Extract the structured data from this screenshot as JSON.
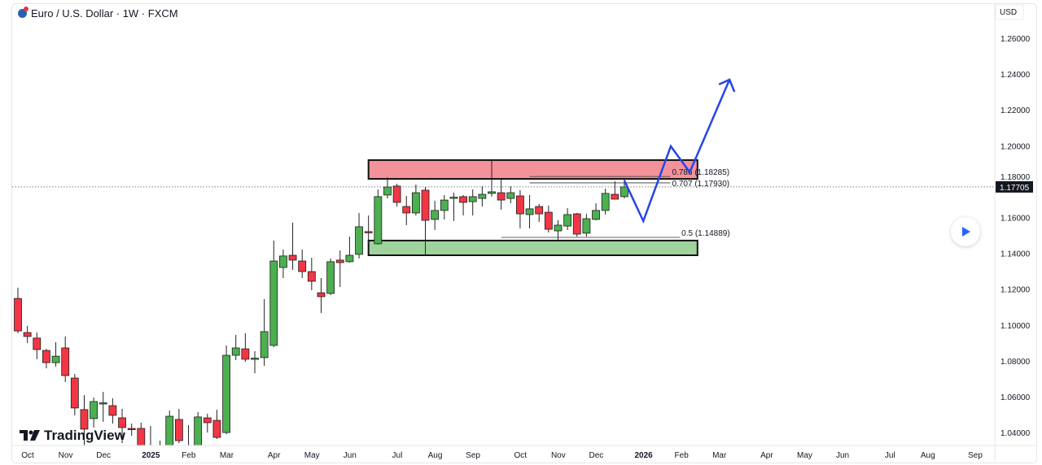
{
  "header": {
    "title": "Euro / U.S. Dollar · 1W · FXCM",
    "currency": "USD",
    "logo_text": "TradingView"
  },
  "colors": {
    "up": "#4caf50",
    "down": "#f23645",
    "outline": "#1e1e1e",
    "projection": "#2546e8",
    "supply_zone": "#f4929c",
    "demand_zone": "#9ed49c",
    "last_price_bg": "#131722"
  },
  "chart_data": {
    "type": "candlestick",
    "title": "Euro / U.S. Dollar · 1W · FXCM",
    "ylabel": "USD",
    "ylim": [
      1.03,
      1.28
    ],
    "y_ticks": [
      "1.26000",
      "1.24000",
      "1.22000",
      "1.20000",
      "1.18000",
      "1.16000",
      "1.14000",
      "1.12000",
      "1.10000",
      "1.08000",
      "1.06000",
      "1.04000"
    ],
    "x_ticks": [
      {
        "label": "Oct",
        "week": 1
      },
      {
        "label": "Nov",
        "week": 5
      },
      {
        "label": "Dec",
        "week": 9
      },
      {
        "label": "2025",
        "week": 14,
        "bold": true
      },
      {
        "label": "Feb",
        "week": 18
      },
      {
        "label": "Mar",
        "week": 22
      },
      {
        "label": "Apr",
        "week": 27
      },
      {
        "label": "May",
        "week": 31
      },
      {
        "label": "Jun",
        "week": 35
      },
      {
        "label": "Jul",
        "week": 40
      },
      {
        "label": "Aug",
        "week": 44
      },
      {
        "label": "Sep",
        "week": 48
      },
      {
        "label": "Oct",
        "week": 53
      },
      {
        "label": "Nov",
        "week": 57
      },
      {
        "label": "Dec",
        "week": 61
      },
      {
        "label": "2026",
        "week": 66,
        "bold": true
      },
      {
        "label": "Feb",
        "week": 70
      },
      {
        "label": "Mar",
        "week": 74
      },
      {
        "label": "Apr",
        "week": 79
      },
      {
        "label": "May",
        "week": 83
      },
      {
        "label": "Jun",
        "week": 87
      },
      {
        "label": "Jul",
        "week": 92
      },
      {
        "label": "Aug",
        "week": 96
      },
      {
        "label": "Sep",
        "week": 101
      }
    ],
    "ohlc": [
      [
        1.1148,
        1.1208,
        1.0954,
        1.0967
      ],
      [
        1.0958,
        1.0995,
        1.0899,
        1.0936
      ],
      [
        1.0927,
        1.0958,
        1.0809,
        1.0863
      ],
      [
        1.0858,
        1.0867,
        1.0758,
        1.079
      ],
      [
        1.079,
        1.0904,
        1.0768,
        1.0826
      ],
      [
        1.0872,
        1.0936,
        1.0682,
        1.0718
      ],
      [
        1.0704,
        1.0727,
        1.0496,
        1.0537
      ],
      [
        1.0528,
        1.0609,
        1.0328,
        1.0419
      ],
      [
        1.0478,
        1.0595,
        1.0428,
        1.0573
      ],
      [
        1.0564,
        1.0627,
        1.046,
        1.0566
      ],
      [
        1.055,
        1.0591,
        1.045,
        1.0496
      ],
      [
        1.0482,
        1.0532,
        1.0341,
        1.0428
      ],
      [
        1.0423,
        1.045,
        1.0382,
        1.042
      ],
      [
        1.0423,
        1.0455,
        1.025,
        1.0273
      ],
      [
        1.0273,
        1.0437,
        1.0205,
        1.0228
      ],
      [
        1.023,
        1.0355,
        1.018,
        1.03
      ],
      [
        1.0273,
        1.0523,
        1.025,
        1.0491
      ],
      [
        1.0473,
        1.0532,
        1.0341,
        1.0355
      ],
      [
        1.024,
        1.0441,
        1.021,
        1.031
      ],
      [
        1.0273,
        1.0514,
        1.025,
        1.0487
      ],
      [
        1.0482,
        1.0505,
        1.04,
        1.0455
      ],
      [
        1.0468,
        1.0527,
        1.0364,
        1.0373
      ],
      [
        1.04,
        1.0886,
        1.0391,
        1.0831
      ],
      [
        1.0831,
        1.0945,
        1.0804,
        1.0872
      ],
      [
        1.0867,
        1.0954,
        1.0795,
        1.0809
      ],
      [
        1.0813,
        1.0854,
        1.0731,
        1.0815
      ],
      [
        1.0818,
        1.1144,
        1.0772,
        1.0963
      ],
      [
        1.0886,
        1.1471,
        1.0877,
        1.1357
      ],
      [
        1.1321,
        1.1421,
        1.1262,
        1.1385
      ],
      [
        1.1389,
        1.1571,
        1.1307,
        1.1362
      ],
      [
        1.1357,
        1.1421,
        1.1262,
        1.1298
      ],
      [
        1.1298,
        1.1375,
        1.1194,
        1.1244
      ],
      [
        1.118,
        1.1262,
        1.1067,
        1.1158
      ],
      [
        1.1176,
        1.1371,
        1.1167,
        1.1353
      ],
      [
        1.1362,
        1.1416,
        1.1212,
        1.1348
      ],
      [
        1.1353,
        1.1493,
        1.1348,
        1.1389
      ],
      [
        1.1394,
        1.1625,
        1.1371,
        1.1548
      ],
      [
        1.1521,
        1.1611,
        1.1453,
        1.1519
      ],
      [
        1.1453,
        1.1756,
        1.1448,
        1.1716
      ],
      [
        1.1725,
        1.1824,
        1.1706,
        1.177
      ],
      [
        1.1775,
        1.1788,
        1.1661,
        1.1684
      ],
      [
        1.1661,
        1.172,
        1.1557,
        1.1625
      ],
      [
        1.1625,
        1.1784,
        1.1611,
        1.1738
      ],
      [
        1.1752,
        1.177,
        1.1394,
        1.1584
      ],
      [
        1.1589,
        1.1693,
        1.153,
        1.1639
      ],
      [
        1.1639,
        1.1725,
        1.1589,
        1.1697
      ],
      [
        1.1711,
        1.1738,
        1.158,
        1.1713
      ],
      [
        1.1716,
        1.1725,
        1.1611,
        1.1684
      ],
      [
        1.1688,
        1.1756,
        1.1611,
        1.1716
      ],
      [
        1.1706,
        1.1774,
        1.1661,
        1.1729
      ],
      [
        1.1734,
        1.192,
        1.1716,
        1.1743
      ],
      [
        1.1738,
        1.1811,
        1.1643,
        1.1697
      ],
      [
        1.1706,
        1.1774,
        1.1679,
        1.1738
      ],
      [
        1.172,
        1.1752,
        1.1539,
        1.162
      ],
      [
        1.1616,
        1.1725,
        1.1539,
        1.1648
      ],
      [
        1.1661,
        1.1675,
        1.1575,
        1.162
      ],
      [
        1.1629,
        1.1666,
        1.1516,
        1.1534
      ],
      [
        1.1525,
        1.1584,
        1.1471,
        1.1557
      ],
      [
        1.1552,
        1.1652,
        1.153,
        1.1616
      ],
      [
        1.162,
        1.1625,
        1.1493,
        1.1507
      ],
      [
        1.1512,
        1.162,
        1.1493,
        1.1593
      ],
      [
        1.1589,
        1.1679,
        1.1584,
        1.1639
      ],
      [
        1.1639,
        1.1761,
        1.1616,
        1.1734
      ],
      [
        1.1729,
        1.1802,
        1.1702,
        1.1702
      ],
      [
        1.1716,
        1.1815,
        1.1706,
        1.17705
      ]
    ],
    "last_price": "1.17705",
    "zones": [
      {
        "name": "supply",
        "from_week": 37,
        "to_week": 70,
        "top": 1.192,
        "bottom": 1.1815
      },
      {
        "name": "demand",
        "from_week": 37,
        "to_week": 70,
        "top": 1.1471,
        "bottom": 1.1389
      }
    ],
    "fib_levels": [
      {
        "label": "0.786 (1.18285)",
        "price": 1.18285,
        "from_week": 54,
        "to_week": 68
      },
      {
        "label": "0.707 (1.17930)",
        "price": 1.1793,
        "from_week": 54,
        "to_week": 68
      },
      {
        "label": "0.5 (1.14889)",
        "price": 1.14889,
        "from_week": 51,
        "to_week": 69
      }
    ],
    "projection": [
      [
        64,
        1.1806
      ],
      [
        66,
        1.158
      ],
      [
        68.9,
        1.1997
      ],
      [
        70.9,
        1.1852
      ],
      [
        75.1,
        1.2369
      ]
    ]
  }
}
